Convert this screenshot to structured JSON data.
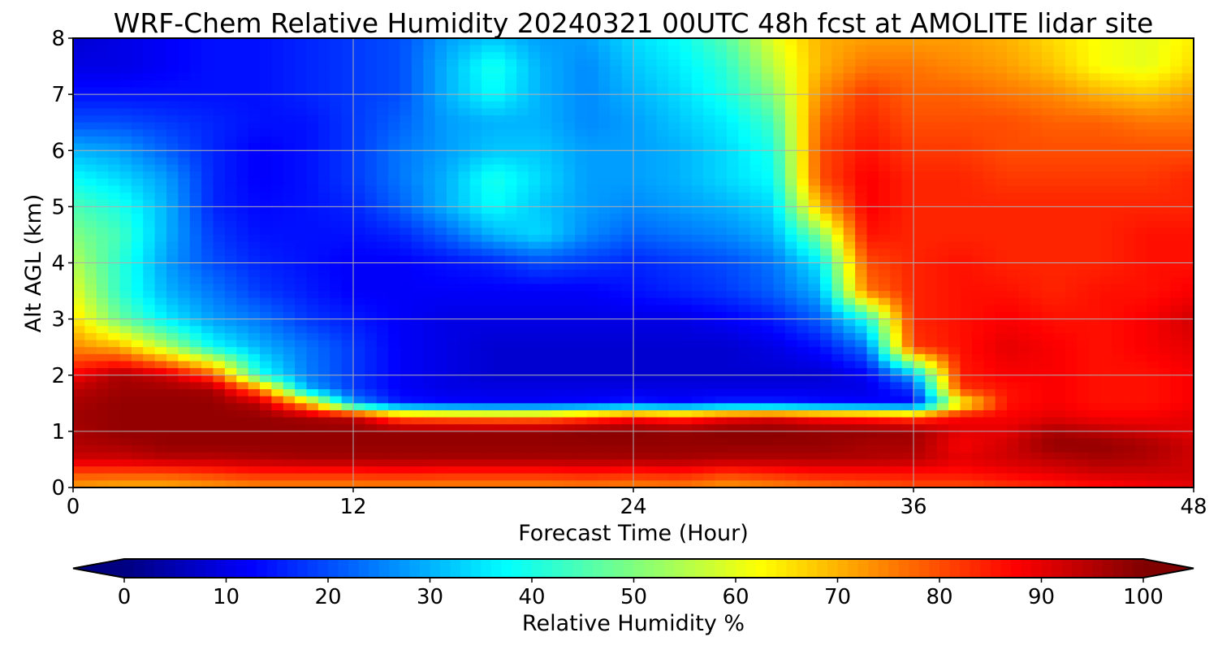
{
  "chart_data": {
    "type": "heatmap",
    "title": "WRF-Chem Relative Humidity 20240321 00UTC 48h fcst at AMOLITE lidar site",
    "xlabel": "Forecast Time (Hour)",
    "ylabel": "Alt AGL (km)",
    "xlim": [
      0,
      48
    ],
    "ylim": [
      0,
      8
    ],
    "xticks": [
      "0",
      "12",
      "24",
      "36",
      "48"
    ],
    "yticks": [
      "0",
      "1",
      "2",
      "3",
      "4",
      "5",
      "6",
      "7",
      "8"
    ],
    "grid": true,
    "colormap": "jet",
    "colorbar": {
      "label": "Relative Humidity %",
      "range": [
        0,
        100
      ],
      "ticks": [
        "0",
        "10",
        "20",
        "30",
        "40",
        "50",
        "60",
        "70",
        "80",
        "90",
        "100"
      ],
      "extend": "both",
      "orientation": "horizontal"
    },
    "hours": [
      0,
      2,
      4,
      6,
      8,
      10,
      12,
      14,
      16,
      18,
      20,
      22,
      24,
      26,
      28,
      30,
      32,
      34,
      36,
      38,
      40,
      42,
      44,
      46,
      48
    ],
    "altitudes_km": [
      0,
      0.25,
      0.5,
      0.75,
      1.0,
      1.25,
      1.5,
      1.75,
      2.0,
      2.5,
      3.0,
      3.5,
      4.0,
      4.5,
      5.0,
      5.5,
      6.0,
      6.5,
      7.0,
      7.5,
      8.0
    ],
    "values_rh_percent": [
      [
        72,
        70,
        70,
        72,
        74,
        74,
        74,
        74,
        74,
        74,
        74,
        75,
        74,
        75,
        72,
        74,
        76,
        78,
        80,
        80,
        82,
        84,
        86,
        88,
        90
      ],
      [
        80,
        80,
        80,
        82,
        84,
        84,
        84,
        85,
        84,
        84,
        84,
        85,
        84,
        85,
        82,
        84,
        86,
        86,
        86,
        86,
        88,
        90,
        92,
        92,
        92
      ],
      [
        92,
        92,
        94,
        94,
        95,
        96,
        96,
        96,
        96,
        96,
        96,
        96,
        96,
        96,
        95,
        95,
        95,
        95,
        94,
        90,
        92,
        94,
        96,
        95,
        92
      ],
      [
        95,
        96,
        98,
        98,
        98,
        98,
        98,
        98,
        98,
        98,
        98,
        98,
        98,
        98,
        98,
        98,
        98,
        96,
        96,
        88,
        92,
        98,
        98,
        96,
        92
      ],
      [
        96,
        98,
        98,
        98,
        98,
        98,
        98,
        98,
        98,
        98,
        98,
        99,
        99,
        98,
        99,
        99,
        98,
        98,
        97,
        90,
        90,
        96,
        94,
        92,
        90
      ],
      [
        97,
        98,
        98,
        98,
        98,
        96,
        94,
        78,
        76,
        75,
        75,
        80,
        86,
        82,
        88,
        90,
        86,
        84,
        80,
        88,
        88,
        90,
        88,
        88,
        90
      ],
      [
        96,
        98,
        98,
        98,
        94,
        70,
        28,
        15,
        13,
        12,
        12,
        13,
        15,
        13,
        16,
        16,
        14,
        13,
        12,
        60,
        86,
        88,
        86,
        86,
        88
      ],
      [
        94,
        97,
        97,
        96,
        75,
        30,
        18,
        12,
        10,
        10,
        10,
        10,
        10,
        10,
        10,
        10,
        10,
        10,
        18,
        82,
        86,
        88,
        86,
        86,
        88
      ],
      [
        88,
        96,
        92,
        80,
        40,
        25,
        18,
        12,
        10,
        8,
        8,
        8,
        8,
        8,
        8,
        8,
        8,
        12,
        30,
        85,
        88,
        88,
        86,
        86,
        88
      ],
      [
        74,
        70,
        55,
        38,
        30,
        24,
        18,
        12,
        10,
        8,
        8,
        8,
        8,
        8,
        8,
        10,
        14,
        24,
        82,
        86,
        90,
        88,
        86,
        88,
        90
      ],
      [
        66,
        48,
        36,
        28,
        24,
        18,
        15,
        12,
        10,
        10,
        10,
        10,
        10,
        10,
        12,
        15,
        22,
        40,
        84,
        86,
        88,
        86,
        86,
        88,
        92
      ],
      [
        60,
        42,
        30,
        24,
        18,
        15,
        12,
        12,
        12,
        12,
        12,
        12,
        14,
        16,
        18,
        22,
        30,
        76,
        84,
        86,
        86,
        84,
        86,
        86,
        88
      ],
      [
        55,
        42,
        28,
        20,
        16,
        14,
        12,
        12,
        14,
        16,
        20,
        18,
        16,
        18,
        20,
        24,
        36,
        80,
        84,
        86,
        84,
        84,
        84,
        86,
        86
      ],
      [
        50,
        44,
        30,
        18,
        14,
        14,
        14,
        16,
        22,
        30,
        34,
        26,
        22,
        24,
        26,
        30,
        50,
        86,
        84,
        84,
        84,
        84,
        84,
        86,
        86
      ],
      [
        45,
        40,
        30,
        16,
        13,
        14,
        16,
        22,
        30,
        38,
        32,
        28,
        26,
        28,
        30,
        34,
        70,
        88,
        84,
        84,
        84,
        84,
        84,
        84,
        84
      ],
      [
        38,
        34,
        28,
        16,
        12,
        14,
        18,
        24,
        30,
        40,
        34,
        28,
        28,
        30,
        34,
        38,
        80,
        88,
        84,
        84,
        82,
        82,
        82,
        82,
        84
      ],
      [
        30,
        28,
        22,
        16,
        12,
        14,
        18,
        24,
        28,
        32,
        32,
        28,
        28,
        30,
        34,
        40,
        80,
        86,
        82,
        82,
        80,
        80,
        80,
        80,
        80
      ],
      [
        20,
        20,
        18,
        16,
        14,
        14,
        18,
        22,
        28,
        30,
        30,
        26,
        28,
        32,
        36,
        44,
        78,
        84,
        80,
        80,
        80,
        78,
        78,
        76,
        76
      ],
      [
        14,
        14,
        14,
        14,
        14,
        16,
        18,
        20,
        30,
        38,
        30,
        26,
        30,
        34,
        40,
        50,
        74,
        82,
        78,
        78,
        76,
        74,
        70,
        68,
        72
      ],
      [
        10,
        10,
        12,
        14,
        14,
        16,
        18,
        20,
        30,
        40,
        30,
        26,
        32,
        36,
        42,
        56,
        70,
        76,
        76,
        74,
        72,
        68,
        62,
        60,
        66
      ],
      [
        8,
        10,
        12,
        14,
        14,
        16,
        18,
        20,
        28,
        32,
        28,
        28,
        34,
        38,
        46,
        60,
        70,
        72,
        72,
        72,
        70,
        66,
        62,
        60,
        64
      ]
    ]
  }
}
